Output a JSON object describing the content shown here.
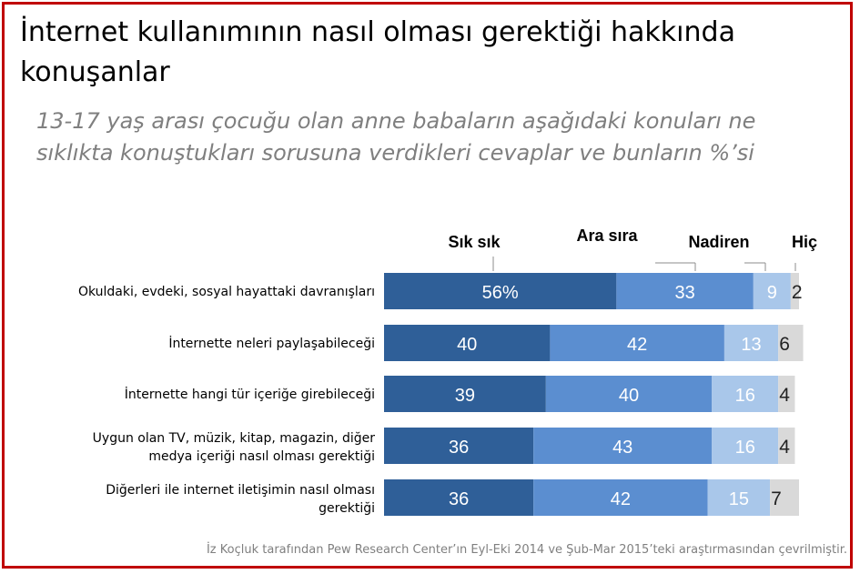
{
  "title": "İnternet kullanımının nasıl olması gerektiği hakkında konuşanlar",
  "subtitle": "13-17 yaş arası çocuğu olan anne babaların aşağıdaki konuları ne sıklıkta konuştukları sorusuna verdikleri cevaplar ve bunların %’si",
  "footer": "İz Koçluk tarafından Pew Research Center’ın Eyl-Eki 2014 ve Şub-Mar  2015’teki araştırmasından çevrilmiştir.",
  "colors": {
    "border": "#c00000",
    "often": "#2f5f98",
    "sometimes": "#5b8ed0",
    "rarely": "#a9c7ea",
    "never": "#d9d9d9"
  },
  "chart_data": {
    "type": "bar",
    "orientation": "horizontal",
    "stacked": true,
    "categories": [
      [
        "Okuldaki, evdeki, sosyal hayattaki davranışları"
      ],
      [
        "İnternette neleri paylaşabileceği"
      ],
      [
        "İnternette hangi tür içeriğe girebileceği"
      ],
      [
        "Uygun olan TV, müzik, kitap, magazin, diğer",
        "medya içeriği nasıl olması gerektiği"
      ],
      [
        "Diğerleri ile internet iletişimin nasıl olması",
        "gerektiği"
      ]
    ],
    "series": [
      {
        "name": "Sık sık",
        "values": [
          56,
          40,
          39,
          36,
          36
        ],
        "labels": [
          "56%",
          "40",
          "39",
          "36",
          "36"
        ]
      },
      {
        "name": "Ara sıra",
        "values": [
          33,
          42,
          40,
          43,
          42
        ],
        "labels": [
          "33",
          "42",
          "40",
          "43",
          "42"
        ]
      },
      {
        "name": "Nadiren",
        "values": [
          9,
          13,
          16,
          16,
          15
        ],
        "labels": [
          "9",
          "13",
          "16",
          "16",
          "15"
        ]
      },
      {
        "name": "Hiç",
        "values": [
          2,
          6,
          4,
          4,
          7
        ],
        "labels": [
          "2",
          "6",
          "4",
          "4",
          "7"
        ]
      }
    ],
    "xlim": [
      0,
      100
    ],
    "legend": "top, above first bar"
  }
}
